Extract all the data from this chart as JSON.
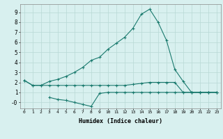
{
  "xlabel": "Humidex (Indice chaleur)",
  "x": [
    0,
    1,
    2,
    3,
    4,
    5,
    6,
    7,
    8,
    9,
    10,
    11,
    12,
    13,
    14,
    15,
    16,
    17,
    18,
    19,
    20,
    21,
    22,
    23
  ],
  "line_main": [
    2.2,
    1.7,
    1.7,
    2.1,
    2.3,
    2.6,
    3.0,
    3.5,
    4.2,
    4.5,
    5.3,
    5.9,
    6.5,
    7.4,
    8.8,
    9.3,
    8.0,
    6.2,
    3.3,
    2.1,
    1.0,
    1.0,
    1.0,
    1.0
  ],
  "line_mid": [
    2.2,
    1.7,
    1.7,
    1.7,
    1.7,
    1.7,
    1.7,
    1.7,
    1.7,
    1.7,
    1.7,
    1.7,
    1.7,
    1.8,
    1.9,
    2.0,
    2.0,
    2.0,
    2.0,
    1.0,
    1.0,
    1.0,
    1.0,
    1.0
  ],
  "line_low": [
    null,
    null,
    null,
    0.5,
    0.3,
    0.2,
    0.0,
    -0.2,
    -0.4,
    0.9,
    1.0,
    1.0,
    1.0,
    1.0,
    1.0,
    1.0,
    1.0,
    1.0,
    1.0,
    1.0,
    1.0,
    1.0,
    1.0,
    1.0
  ],
  "line_color": "#1a7a6e",
  "bg_color": "#d8f0ef",
  "grid_color": "#b8d8d5",
  "ylim": [
    -0.6,
    9.8
  ],
  "xlim": [
    -0.5,
    23.5
  ],
  "yticks": [
    0,
    1,
    2,
    3,
    4,
    5,
    6,
    7,
    8,
    9
  ],
  "ytick_labels": [
    "-0",
    "1",
    "2",
    "3",
    "4",
    "5",
    "6",
    "7",
    "8",
    "9"
  ],
  "xticks": [
    0,
    1,
    2,
    3,
    4,
    5,
    6,
    7,
    8,
    9,
    10,
    11,
    12,
    13,
    14,
    15,
    16,
    17,
    18,
    19,
    20,
    21,
    22,
    23
  ]
}
